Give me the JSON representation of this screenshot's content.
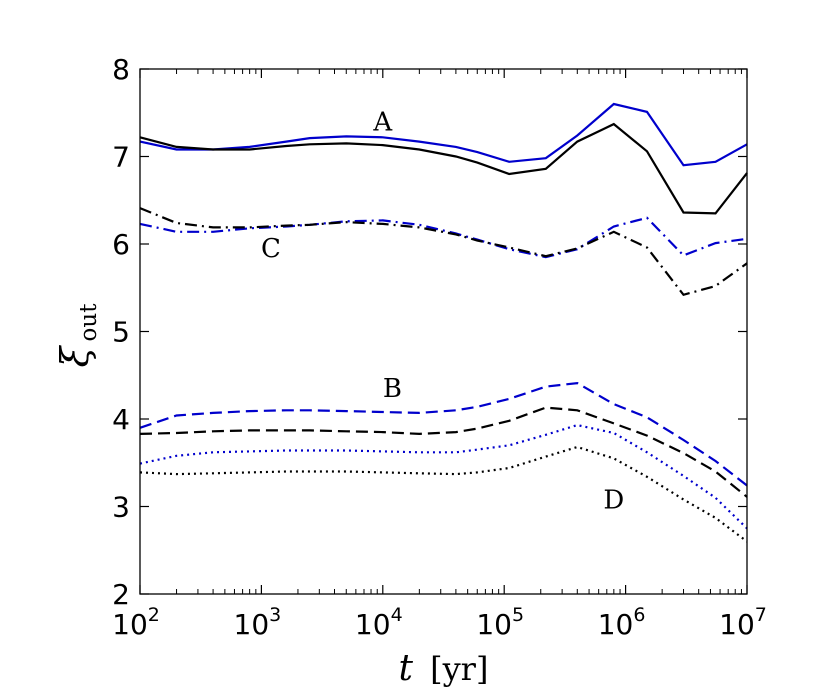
{
  "chart_data": {
    "type": "line",
    "title": "",
    "xlabel": {
      "var": "t",
      "unit": "[yr]"
    },
    "ylabel": {
      "var": "ξ",
      "sub": "out"
    },
    "xscale": "log",
    "xlim": [
      100,
      10000000
    ],
    "ylim": [
      2,
      8
    ],
    "grid": false,
    "legend": "none",
    "xticks": [
      {
        "value": 100,
        "base": "10",
        "exp": "2"
      },
      {
        "value": 1000,
        "base": "10",
        "exp": "3"
      },
      {
        "value": 10000,
        "base": "10",
        "exp": "4"
      },
      {
        "value": 100000,
        "base": "10",
        "exp": "5"
      },
      {
        "value": 1000000,
        "base": "10",
        "exp": "6"
      },
      {
        "value": 10000000,
        "base": "10",
        "exp": "7"
      }
    ],
    "yticks": [
      {
        "value": 2,
        "label": "2"
      },
      {
        "value": 3,
        "label": "3"
      },
      {
        "value": 4,
        "label": "4"
      },
      {
        "value": 5,
        "label": "5"
      },
      {
        "value": 6,
        "label": "6"
      },
      {
        "value": 7,
        "label": "7"
      },
      {
        "value": 8,
        "label": "8"
      }
    ],
    "annotations": [
      {
        "text": "A",
        "x": 10000,
        "y": 7.3
      },
      {
        "text": "C",
        "x": 1200,
        "y": 5.85
      },
      {
        "text": "B",
        "x": 12000,
        "y": 4.25
      },
      {
        "text": "D",
        "x": 800000,
        "y": 2.98
      }
    ],
    "series": [
      {
        "name": "A-blue",
        "group": "A",
        "color": "#0000cc",
        "dash": "solid",
        "points": [
          [
            100,
            7.17
          ],
          [
            200,
            7.08
          ],
          [
            400,
            7.08
          ],
          [
            800,
            7.11
          ],
          [
            1600,
            7.17
          ],
          [
            2500,
            7.21
          ],
          [
            5000,
            7.23
          ],
          [
            10000,
            7.22
          ],
          [
            20000,
            7.17
          ],
          [
            40000,
            7.11
          ],
          [
            60000,
            7.05
          ],
          [
            110000,
            6.94
          ],
          [
            220000,
            6.98
          ],
          [
            400000,
            7.24
          ],
          [
            800000,
            7.6
          ],
          [
            1500000,
            7.51
          ],
          [
            3000000,
            6.9
          ],
          [
            5500000,
            6.94
          ],
          [
            10000000,
            7.14
          ]
        ]
      },
      {
        "name": "A-black",
        "group": "A",
        "color": "#000000",
        "dash": "solid",
        "points": [
          [
            100,
            7.22
          ],
          [
            200,
            7.11
          ],
          [
            400,
            7.08
          ],
          [
            800,
            7.08
          ],
          [
            1600,
            7.12
          ],
          [
            2500,
            7.14
          ],
          [
            5000,
            7.15
          ],
          [
            10000,
            7.13
          ],
          [
            20000,
            7.08
          ],
          [
            40000,
            7.0
          ],
          [
            60000,
            6.93
          ],
          [
            110000,
            6.8
          ],
          [
            220000,
            6.86
          ],
          [
            400000,
            7.17
          ],
          [
            800000,
            7.37
          ],
          [
            1500000,
            7.06
          ],
          [
            3000000,
            6.36
          ],
          [
            5500000,
            6.35
          ],
          [
            10000000,
            6.81
          ]
        ]
      },
      {
        "name": "C-blue",
        "group": "C",
        "color": "#0000cc",
        "dash": "dashdot",
        "points": [
          [
            100,
            6.23
          ],
          [
            200,
            6.14
          ],
          [
            400,
            6.14
          ],
          [
            800,
            6.18
          ],
          [
            1600,
            6.2
          ],
          [
            2500,
            6.22
          ],
          [
            5000,
            6.26
          ],
          [
            10000,
            6.27
          ],
          [
            20000,
            6.22
          ],
          [
            40000,
            6.12
          ],
          [
            60000,
            6.05
          ],
          [
            110000,
            5.94
          ],
          [
            220000,
            5.85
          ],
          [
            400000,
            5.94
          ],
          [
            800000,
            6.2
          ],
          [
            1500000,
            6.3
          ],
          [
            3000000,
            5.87
          ],
          [
            5500000,
            6.01
          ],
          [
            10000000,
            6.06
          ]
        ]
      },
      {
        "name": "C-black",
        "group": "C",
        "color": "#000000",
        "dash": "dashdot",
        "points": [
          [
            100,
            6.41
          ],
          [
            200,
            6.24
          ],
          [
            400,
            6.19
          ],
          [
            800,
            6.19
          ],
          [
            1600,
            6.21
          ],
          [
            2500,
            6.22
          ],
          [
            5000,
            6.25
          ],
          [
            10000,
            6.23
          ],
          [
            20000,
            6.19
          ],
          [
            40000,
            6.11
          ],
          [
            60000,
            6.04
          ],
          [
            110000,
            5.96
          ],
          [
            220000,
            5.86
          ],
          [
            400000,
            5.95
          ],
          [
            800000,
            6.14
          ],
          [
            1500000,
            5.96
          ],
          [
            3000000,
            5.42
          ],
          [
            5500000,
            5.52
          ],
          [
            10000000,
            5.78
          ]
        ]
      },
      {
        "name": "B-blue",
        "group": "B",
        "color": "#0000cc",
        "dash": "dashed",
        "points": [
          [
            100,
            3.9
          ],
          [
            200,
            4.04
          ],
          [
            400,
            4.07
          ],
          [
            800,
            4.09
          ],
          [
            1600,
            4.1
          ],
          [
            2500,
            4.1
          ],
          [
            5000,
            4.09
          ],
          [
            10000,
            4.08
          ],
          [
            20000,
            4.07
          ],
          [
            40000,
            4.1
          ],
          [
            60000,
            4.14
          ],
          [
            110000,
            4.23
          ],
          [
            220000,
            4.37
          ],
          [
            400000,
            4.41
          ],
          [
            800000,
            4.17
          ],
          [
            1500000,
            4.02
          ],
          [
            3000000,
            3.76
          ],
          [
            5500000,
            3.52
          ],
          [
            10000000,
            3.24
          ]
        ]
      },
      {
        "name": "B-black",
        "group": "B",
        "color": "#000000",
        "dash": "dashed",
        "points": [
          [
            100,
            3.83
          ],
          [
            200,
            3.84
          ],
          [
            400,
            3.86
          ],
          [
            800,
            3.87
          ],
          [
            1600,
            3.87
          ],
          [
            2500,
            3.87
          ],
          [
            5000,
            3.86
          ],
          [
            10000,
            3.85
          ],
          [
            20000,
            3.83
          ],
          [
            40000,
            3.85
          ],
          [
            60000,
            3.89
          ],
          [
            110000,
            3.98
          ],
          [
            220000,
            4.13
          ],
          [
            400000,
            4.1
          ],
          [
            800000,
            3.95
          ],
          [
            1500000,
            3.81
          ],
          [
            3000000,
            3.61
          ],
          [
            5500000,
            3.4
          ],
          [
            10000000,
            3.11
          ]
        ]
      },
      {
        "name": "D-blue",
        "group": "D",
        "color": "#0000cc",
        "dash": "dotted",
        "points": [
          [
            100,
            3.49
          ],
          [
            200,
            3.58
          ],
          [
            400,
            3.62
          ],
          [
            800,
            3.63
          ],
          [
            1600,
            3.64
          ],
          [
            2500,
            3.64
          ],
          [
            5000,
            3.64
          ],
          [
            10000,
            3.63
          ],
          [
            20000,
            3.62
          ],
          [
            40000,
            3.62
          ],
          [
            60000,
            3.65
          ],
          [
            110000,
            3.7
          ],
          [
            220000,
            3.82
          ],
          [
            400000,
            3.93
          ],
          [
            800000,
            3.84
          ],
          [
            1500000,
            3.62
          ],
          [
            3000000,
            3.35
          ],
          [
            5500000,
            3.1
          ],
          [
            10000000,
            2.75
          ]
        ]
      },
      {
        "name": "D-black",
        "group": "D",
        "color": "#000000",
        "dash": "dotted",
        "points": [
          [
            100,
            3.39
          ],
          [
            200,
            3.37
          ],
          [
            400,
            3.38
          ],
          [
            800,
            3.39
          ],
          [
            1600,
            3.4
          ],
          [
            2500,
            3.4
          ],
          [
            5000,
            3.4
          ],
          [
            10000,
            3.39
          ],
          [
            20000,
            3.38
          ],
          [
            40000,
            3.37
          ],
          [
            60000,
            3.39
          ],
          [
            110000,
            3.44
          ],
          [
            220000,
            3.57
          ],
          [
            400000,
            3.68
          ],
          [
            800000,
            3.55
          ],
          [
            1500000,
            3.34
          ],
          [
            3000000,
            3.08
          ],
          [
            5500000,
            2.87
          ],
          [
            10000000,
            2.6
          ]
        ]
      }
    ]
  }
}
